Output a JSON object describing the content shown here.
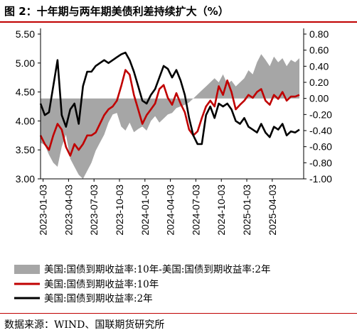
{
  "title": "图 2：十年期与两年期美债利差持续扩大（%）",
  "source": "数据来源：WIND、国联期货研究所",
  "chart_data": {
    "type": "line",
    "x_ticks": [
      "2023-01-03",
      "2023-04-03",
      "2023-07-03",
      "2023-10-03",
      "2024-01-03",
      "2024-04-03",
      "2024-07-03",
      "2024-10-03",
      "2025-01-03",
      "2025-04-03"
    ],
    "y_left": {
      "lim": [
        3.0,
        5.5
      ],
      "ticks": [
        "3.00",
        "3.50",
        "4.00",
        "4.50",
        "5.00",
        "5.50"
      ]
    },
    "y_right": {
      "lim": [
        -1.0,
        0.8
      ],
      "ticks": [
        "-1.00",
        "-0.80",
        "-0.60",
        "-0.40",
        "-0.20",
        "0.00",
        "0.20",
        "0.40",
        "0.60",
        "0.80"
      ]
    },
    "grid": false,
    "legend_position": "bottom",
    "series": [
      {
        "name": "美国:国债到期收益率:10年-美国:国债到期收益率:2年",
        "type": "area",
        "axis": "right",
        "color": "#a6a6a6",
        "x": [
          0,
          0.5,
          1,
          1.5,
          2,
          2.5,
          3,
          3.5,
          4,
          4.5,
          5,
          5.5,
          6,
          6.5,
          7,
          7.5,
          8,
          8.5,
          9,
          9.5,
          10,
          10.5,
          11,
          11.5,
          12,
          12.5,
          13,
          13.5,
          14,
          14.5,
          15,
          15.5,
          16,
          16.5,
          17,
          17.5,
          18,
          18.5,
          19,
          19.5,
          20,
          20.5,
          21,
          21.5,
          22,
          22.5,
          23,
          23.5,
          24,
          24.5,
          25,
          25.5,
          26,
          26.5,
          27,
          27.5,
          28,
          28.5,
          29,
          29.5,
          30,
          30.5
        ],
        "values": [
          -0.55,
          -0.58,
          -0.7,
          -0.8,
          -0.85,
          -0.6,
          -0.45,
          -0.75,
          -0.85,
          -0.95,
          -1.0,
          -0.9,
          -0.8,
          -0.65,
          -0.55,
          -0.45,
          -0.3,
          -0.2,
          -0.18,
          -0.35,
          -0.4,
          -0.3,
          -0.42,
          -0.38,
          -0.35,
          -0.4,
          -0.28,
          -0.22,
          -0.3,
          -0.25,
          -0.2,
          -0.18,
          -0.12,
          -0.1,
          -0.08,
          -0.05,
          0.0,
          0.05,
          0.1,
          0.15,
          0.2,
          0.25,
          0.2,
          0.3,
          0.18,
          0.22,
          0.15,
          0.2,
          0.25,
          0.35,
          0.3,
          0.45,
          0.55,
          0.48,
          0.4,
          0.52,
          0.45,
          0.5,
          0.4,
          0.48,
          0.45,
          0.5
        ]
      },
      {
        "name": "美国:国债到期收益率:10年",
        "type": "line",
        "axis": "left",
        "color": "#c00000",
        "x": [
          0,
          0.5,
          1,
          1.5,
          2,
          2.5,
          3,
          3.5,
          4,
          4.5,
          5,
          5.5,
          6,
          6.5,
          7,
          7.5,
          8,
          8.5,
          9,
          9.5,
          10,
          10.5,
          11,
          11.5,
          12,
          12.5,
          13,
          13.5,
          14,
          14.5,
          15,
          15.5,
          16,
          16.5,
          17,
          17.5,
          18,
          18.5,
          19,
          19.5,
          20,
          20.5,
          21,
          21.5,
          22,
          22.5,
          23,
          23.5,
          24,
          24.5,
          25,
          25.5,
          26,
          26.5,
          27,
          27.5,
          28,
          28.5,
          29,
          29.5,
          30,
          30.5
        ],
        "values": [
          3.75,
          3.6,
          3.5,
          3.75,
          3.95,
          3.85,
          3.55,
          3.4,
          3.6,
          3.5,
          3.6,
          3.75,
          3.75,
          3.8,
          3.95,
          4.1,
          4.2,
          4.25,
          4.35,
          4.6,
          4.88,
          4.8,
          4.45,
          4.2,
          3.95,
          4.1,
          4.2,
          4.3,
          4.55,
          4.62,
          4.4,
          4.28,
          4.48,
          4.3,
          4.15,
          3.85,
          3.75,
          3.82,
          4.05,
          4.25,
          4.35,
          4.25,
          4.6,
          4.45,
          4.7,
          4.5,
          4.2,
          4.28,
          4.35,
          4.45,
          4.4,
          4.5,
          4.55,
          4.35,
          4.28,
          4.45,
          4.38,
          4.5,
          4.35,
          4.42,
          4.42,
          4.45
        ]
      },
      {
        "name": "美国:国债到期收益率:2年",
        "type": "line",
        "axis": "left",
        "color": "#000000",
        "x": [
          0,
          0.5,
          1,
          1.5,
          2,
          2.5,
          3,
          3.5,
          4,
          4.5,
          5,
          5.5,
          6,
          6.5,
          7,
          7.5,
          8,
          8.5,
          9,
          9.5,
          10,
          10.5,
          11,
          11.5,
          12,
          12.5,
          13,
          13.5,
          14,
          14.5,
          15,
          15.5,
          16,
          16.5,
          17,
          17.5,
          18,
          18.5,
          19,
          19.5,
          20,
          20.5,
          21,
          21.5,
          22,
          22.5,
          23,
          23.5,
          24,
          24.5,
          25,
          25.5,
          26,
          26.5,
          27,
          27.5,
          28,
          28.5,
          29,
          29.5,
          30,
          30.5
        ],
        "values": [
          4.3,
          4.1,
          4.15,
          4.6,
          5.05,
          4.1,
          3.9,
          4.2,
          4.3,
          3.95,
          4.6,
          4.85,
          4.85,
          4.95,
          5.0,
          5.05,
          5.0,
          5.05,
          5.1,
          5.15,
          5.18,
          5.05,
          4.85,
          4.6,
          4.35,
          4.3,
          4.45,
          4.55,
          4.75,
          4.95,
          4.9,
          4.75,
          4.88,
          4.7,
          4.45,
          4.05,
          3.75,
          3.6,
          3.6,
          4.1,
          4.25,
          4.05,
          4.3,
          4.25,
          4.3,
          4.2,
          4.0,
          3.95,
          4.05,
          3.9,
          3.85,
          3.8,
          3.95,
          3.8,
          3.72,
          3.9,
          3.85,
          3.95,
          3.75,
          3.82,
          3.8,
          3.85
        ]
      }
    ]
  }
}
